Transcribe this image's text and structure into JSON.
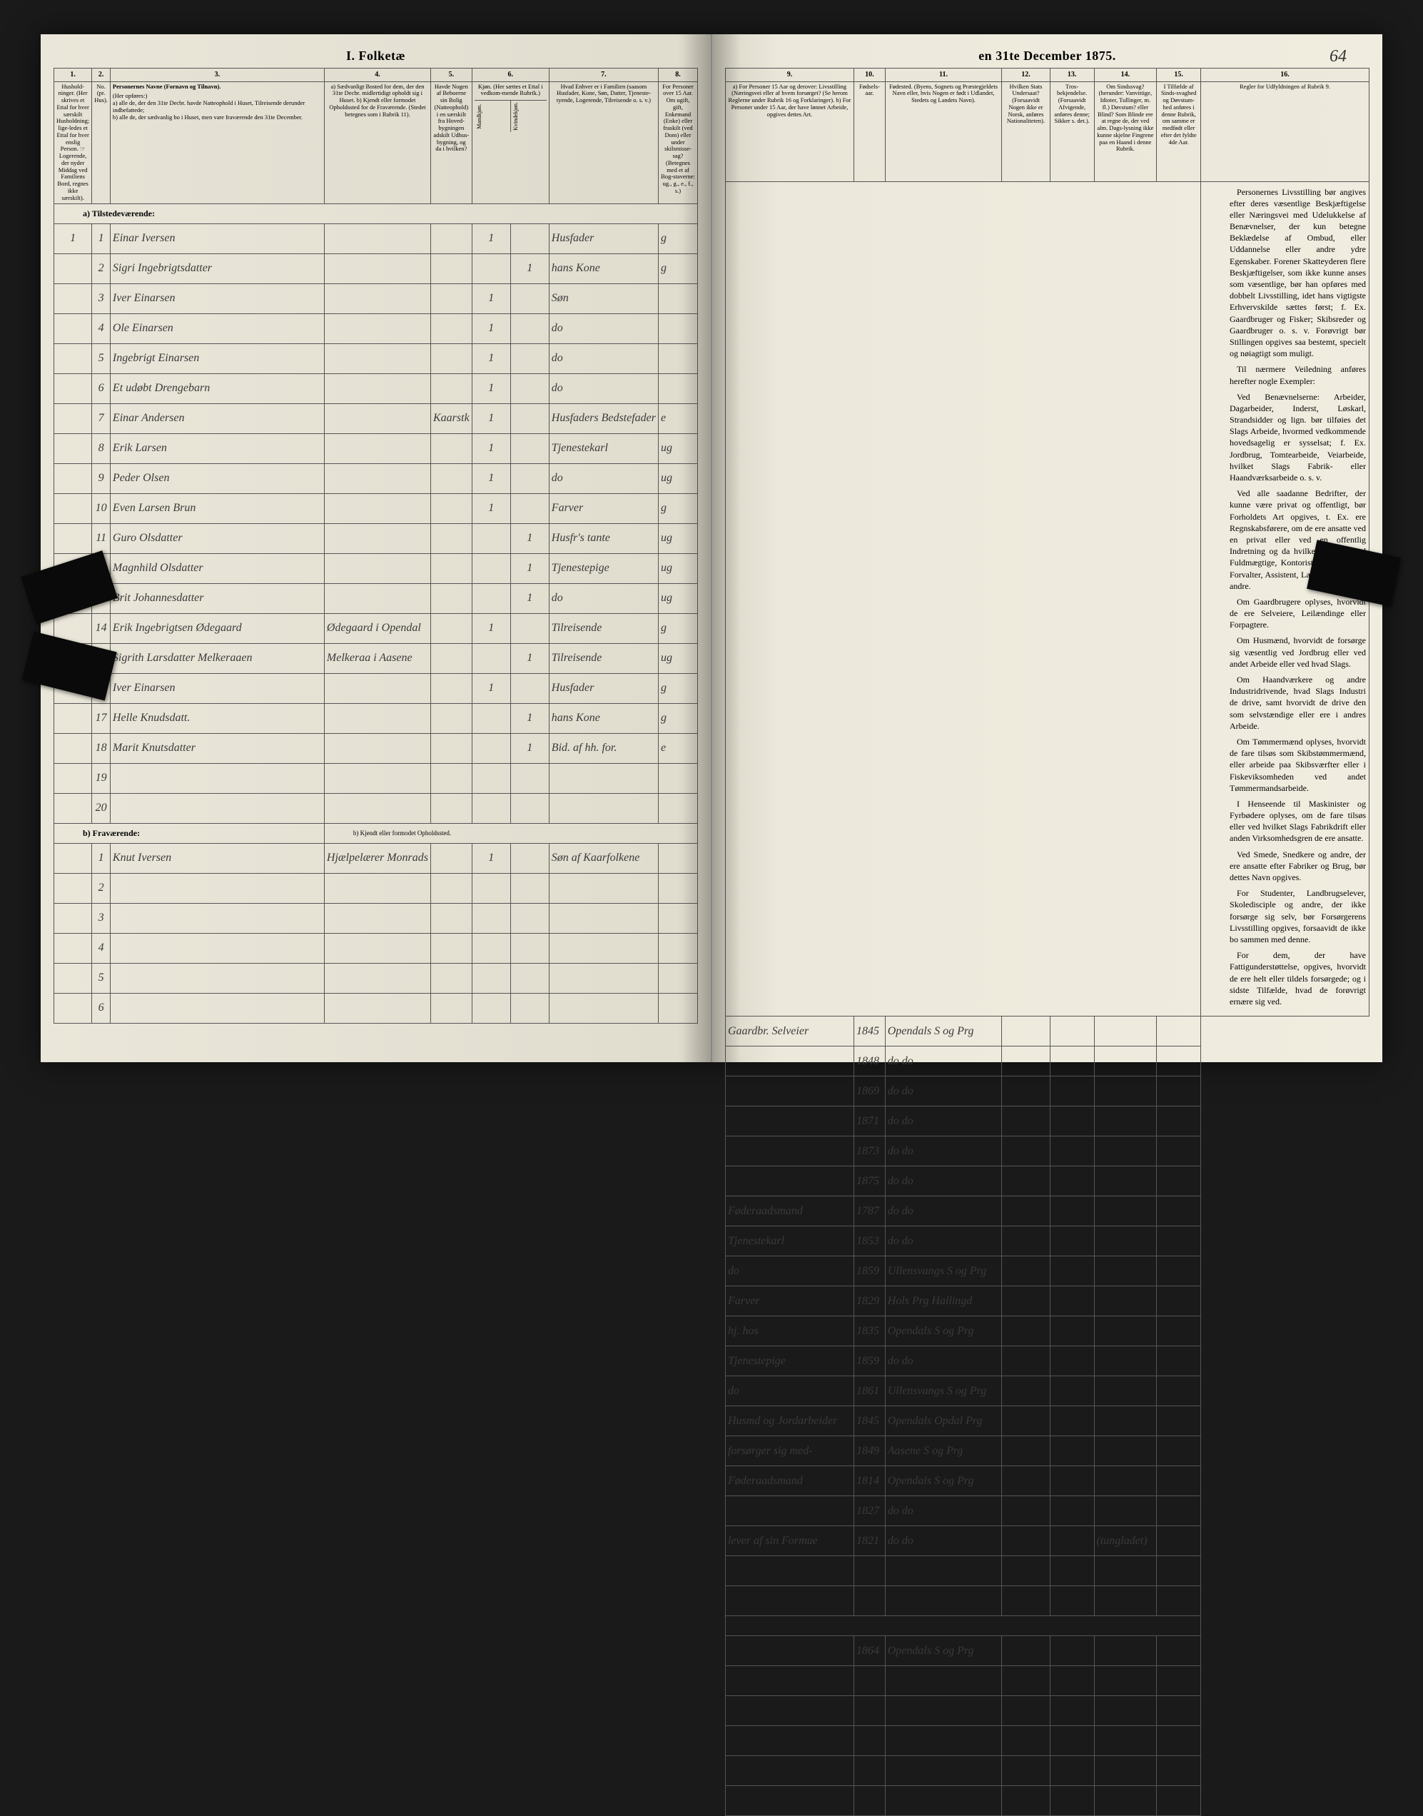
{
  "title_left": "I.  Folketæ",
  "title_right": "en 31te December 1875.",
  "page_number": "64",
  "columns_left": [
    "1.",
    "2.",
    "3.",
    "4.",
    "5.",
    "6.",
    "7.",
    "8."
  ],
  "columns_right": [
    "9.",
    "10.",
    "11.",
    "12.",
    "13.",
    "14.",
    "15.",
    "16."
  ],
  "header_left": {
    "c1": "Hushold-ninger. (Her skrives et Ettal for hver særskilt Husholdning; lige-ledes et Ettal for hver enslig Person. ☞ Logerende, der nyder Middag ved Familiens Bord, regnes ikke særskilt).",
    "c2": "No. (pr. Hus).",
    "c3_title": "Personernes Navne (Fornavn og Tilnavn).",
    "c3_sub": "(Her opføres:)\na) alle de, der den 31te Decbr. havde Natteophold i Huset, Tilreisende derunder indbefattede;\nb) alle de, der sædvanlig bo i Huset, men vare fraværende den 31te December.",
    "c4": "a) Sædvanligt Bosted for dem, der den 31te Decbr. midlertidigt opholdt sig i Huset.\nb) Kjendt eller formodet Opholdssted for de Fraværende. (Stedet betegnes som i Rubrik 11).",
    "c5": "Havde Nogen af Beboerne sin Bolig (Natteophold) i en særskilt fra Hoved-bygningen adskilt Udhus-bygning, og da i hvilken?",
    "c6": "Kjøn. (Her sættes et Ettal i vedkom-mende Rubrik.)",
    "c6a": "Mandkjøn.",
    "c6b": "Kvindekjøn.",
    "c7": "Hvad Enhver er i Familien (saasom Husfader, Kone, Søn, Datter, Tjeneste-tyende, Logerende, Tilreisende o. s. v.)",
    "c8": "For Personer over 15 Aar. Om ugift, gift, Enkemand (Enke) eller fraskilt (ved Dom) eller under skilsmisse-sag? (Betegnes med et af Bog-staverne: ug., g., e., f., s.)"
  },
  "header_right": {
    "c9": "a) For Personer 15 Aar og derover: Livsstilling (Næringsvei eller af hvem forsørget? (Se herom Reglerne under Rubrik 16 og Forklaringer).\nb) For Personer under 15 Aar, der have lønnet Arbeide, opgives dettes Art.",
    "c10": "Fødsels-aar.",
    "c11": "Fødested. (Byens, Sognets og Præstegjeldets Navn eller, hvis Nogen er født i Udlandet, Stedets og Landets Navn).",
    "c12": "Hvilken Stats Undersaat? (Forsaavidt Nogen ikke er Norsk, anføres Nationaliteten).",
    "c13": "Tros-bekjendelse. (Forsaavidt Afvigende, anføres denne; Sikker s. det.).",
    "c14": "Om Sindssvag? (herunder: Vanvittige, Idioter, Tullinger, m. fl.) Døvstum? eller Blind? Som Blinde ere at regne de, der ved alm. Dags-lysning ikke kunne skjelne Fingrene paa en Haand i denne Rubrik.",
    "c15": "I Tilfælde af Sinds-svaghed og Døvstum-hed anføres i denne Rubrik, om samme er medfødt eller efter det fyldte 4de Aar.",
    "c16": "Regler for Udfyldningen af Rubrik 9."
  },
  "section_a": "a) Tilstedeværende:",
  "section_b": "b) Fraværende:",
  "section_b_note": "b) Kjendt eller formodet Opholdssted.",
  "rows_a": [
    {
      "hh": "1",
      "n": "1",
      "name": "Einar Iversen",
      "c4": "",
      "c5": "",
      "m": "1",
      "k": "",
      "fam": "Husfader",
      "stat": "g",
      "occ": "Gaardbr. Selveier",
      "yr": "1845",
      "place": "Opendals S og Prg"
    },
    {
      "hh": "",
      "n": "2",
      "name": "Sigri Ingebrigtsdatter",
      "c4": "",
      "c5": "",
      "m": "",
      "k": "1",
      "fam": "hans Kone",
      "stat": "g",
      "occ": "",
      "yr": "1848",
      "place": "do  do"
    },
    {
      "hh": "",
      "n": "3",
      "name": "Iver Einarsen",
      "c4": "",
      "c5": "",
      "m": "1",
      "k": "",
      "fam": "Søn",
      "stat": "",
      "occ": "",
      "yr": "1869",
      "place": "do  do"
    },
    {
      "hh": "",
      "n": "4",
      "name": "Ole Einarsen",
      "c4": "",
      "c5": "",
      "m": "1",
      "k": "",
      "fam": "do",
      "stat": "",
      "occ": "",
      "yr": "1871",
      "place": "do  do"
    },
    {
      "hh": "",
      "n": "5",
      "name": "Ingebrigt Einarsen",
      "c4": "",
      "c5": "",
      "m": "1",
      "k": "",
      "fam": "do",
      "stat": "",
      "occ": "",
      "yr": "1873",
      "place": "do  do"
    },
    {
      "hh": "",
      "n": "6",
      "name": "Et udøbt Drengebarn",
      "c4": "",
      "c5": "",
      "m": "1",
      "k": "",
      "fam": "do",
      "stat": "",
      "occ": "",
      "yr": "1875",
      "place": "do  do"
    },
    {
      "hh": "",
      "n": "7",
      "name": "Einar Andersen",
      "c4": "",
      "c5": "Kaarstk",
      "m": "1",
      "k": "",
      "fam": "Husfaders Bedstefader",
      "stat": "e",
      "occ": "Føderaadsmand",
      "yr": "1787",
      "place": "do  do"
    },
    {
      "hh": "",
      "n": "8",
      "name": "Erik Larsen",
      "c4": "",
      "c5": "",
      "m": "1",
      "k": "",
      "fam": "Tjenestekarl",
      "stat": "ug",
      "occ": "Tjenestekarl",
      "yr": "1853",
      "place": "do  do"
    },
    {
      "hh": "",
      "n": "9",
      "name": "Peder Olsen",
      "c4": "",
      "c5": "",
      "m": "1",
      "k": "",
      "fam": "do",
      "stat": "ug",
      "occ": "do",
      "yr": "1859",
      "place": "Ullensvangs S og Prg"
    },
    {
      "hh": "",
      "n": "10",
      "name": "Even Larsen Brun",
      "c4": "",
      "c5": "",
      "m": "1",
      "k": "",
      "fam": "Farver",
      "stat": "g",
      "occ": "Farver",
      "yr": "1829",
      "place": "Hols Prg Hallingd"
    },
    {
      "hh": "",
      "n": "11",
      "name": "Guro Olsdatter",
      "c4": "",
      "c5": "",
      "m": "",
      "k": "1",
      "fam": "Husfr's tante",
      "stat": "ug",
      "occ": "hj. hos",
      "yr": "1835",
      "place": "Opendals S og Prg"
    },
    {
      "hh": "",
      "n": "12",
      "name": "Magnhild Olsdatter",
      "c4": "",
      "c5": "",
      "m": "",
      "k": "1",
      "fam": "Tjenestepige",
      "stat": "ug",
      "occ": "Tjenestepige",
      "yr": "1859",
      "place": "do  do"
    },
    {
      "hh": "",
      "n": "13",
      "name": "Brit Johannesdatter",
      "c4": "",
      "c5": "",
      "m": "",
      "k": "1",
      "fam": "do",
      "stat": "ug",
      "occ": "do",
      "yr": "1861",
      "place": "Ullensvangs S og Prg"
    },
    {
      "hh": "",
      "n": "14",
      "name": "Erik Ingebrigtsen Ødegaard",
      "c4": "Ødegaard i Opendal",
      "c5": "",
      "m": "1",
      "k": "",
      "fam": "Tilreisende",
      "stat": "g",
      "occ": "Husmd og Jordarbeider",
      "yr": "1845",
      "place": "Opendals Opdal Prg"
    },
    {
      "hh": "",
      "n": "15",
      "name": "Sigrith Larsdatter Melkeraaen",
      "c4": "Melkeraa i Aasene",
      "c5": "",
      "m": "",
      "k": "1",
      "fam": "Tilreisende",
      "stat": "ug",
      "occ": "forsørger sig med-",
      "yr": "1849",
      "place": "Aasene S og Prg"
    },
    {
      "hh": "1",
      "n": "16",
      "name": "Iver Einarsen",
      "c4": "",
      "c5": "",
      "m": "1",
      "k": "",
      "fam": "Husfader",
      "stat": "g",
      "occ": "Føderaadsmand",
      "yr": "1814",
      "place": "Opendals S og Prg"
    },
    {
      "hh": "",
      "n": "17",
      "name": "Helle Knudsdatt.",
      "c4": "",
      "c5": "",
      "m": "",
      "k": "1",
      "fam": "hans Kone",
      "stat": "g",
      "occ": "",
      "yr": "1827",
      "place": "do  do"
    },
    {
      "hh": "",
      "n": "18",
      "name": "Marit Knutsdatter",
      "c4": "",
      "c5": "",
      "m": "",
      "k": "1",
      "fam": "Bid. af hh. for.",
      "stat": "e",
      "occ": "lever af sin Formue",
      "yr": "1821",
      "place": "do  do"
    }
  ],
  "rows_a_empty": [
    19,
    20
  ],
  "rows_b": [
    {
      "hh": "",
      "n": "1",
      "name": "Knut Iversen",
      "c4": "Hjælpelærer Monrads",
      "c5": "",
      "m": "1",
      "k": "",
      "fam": "Søn af Kaarfolkene",
      "stat": "",
      "occ": "",
      "yr": "1864",
      "place": "Opendals S og Prg"
    }
  ],
  "rows_b_empty": [
    2,
    3,
    4,
    5,
    6
  ],
  "note_col14_row18": "(tungladet)",
  "instructions": [
    "Personernes Livsstilling bør angives efter deres væsentlige Beskjæftigelse eller Næringsvei med Udelukkelse af Benævnelser, der kun betegne Beklædelse af Ombud, eller Uddannelse eller andre ydre Egenskaber. Forener Skatteyderen flere Beskjæftigelser, som ikke kunne anses som væsentlige, bør han opføres med dobbelt Livsstilling, idet hans vigtigste Erhvervskilde sættes først; f. Ex. Gaardbruger og Fisker; Skibsreder og Gaardbruger o. s. v. Forøvrigt bør Stillingen opgives saa bestemt, specielt og nøiagtigt som muligt.",
    "Til nærmere Veiledning anføres herefter nogle Exempler:",
    "Ved Benævnelserne: Arbeider, Dagarbeider, Inderst, Løskarl, Strandsidder og lign. bør tilføies det Slags Arbeide, hvormed vedkommende hovedsagelig er sysselsat; f. Ex. Jordbrug, Tomtearbeide, Veiarbeide, hvilket Slags Fabrik- eller Haandværksarbeide o. s. v.",
    "Ved alle saadanne Bedrifter, der kunne være privat og offentligt, bør Forholdets Art opgives, t. Ex. ere Regnskabsførere, om de ere ansatte ved en privat eller ved en offentlig Indretning og da hvilken; ligesaa ved Fuldmægtige, Kontorist, Opsynsmand, Forvalter, Assistent, Lærer, Ingeniør og andre.",
    "Om Gaardbrugere oplyses, hvorvidt de ere Selveiere, Leilændinge eller Forpagtere.",
    "Om Husmænd, hvorvidt de forsørge sig væsentlig ved Jordbrug eller ved andet Arbeide eller ved hvad Slags.",
    "Om Haandværkere og andre Industridrivende, hvad Slags Industri de drive, samt hvorvidt de drive den som selvstændige eller ere i andres Arbeide.",
    "Om Tømmermænd oplyses, hvorvidt de fare tilsøs som Skibstømmermænd, eller arbeide paa Skibsværfter eller i Fiskeviksomheden ved andet Tømmermandsarbeide.",
    "I Henseende til Maskinister og Fyrbødere oplyses, om de fare tilsøs eller ved hvilket Slags Fabrikdrift eller anden Virksomhedsgren de ere ansatte.",
    "Ved Smede, Snedkere og andre, der ere ansatte efter Fabriker og Brug, bør dettes Navn opgives.",
    "For Studenter, Landbrugselever, Skoledisciple og andre, der ikke forsørge sig selv, bør Forsørgerens Livsstilling opgives, forsaavidt de ikke bo sammen med denne.",
    "For dem, der have Fattigunderstøttelse, opgives, hvorvidt de ere helt eller tildels forsørgede; og i sidste Tilfælde, hvad de forøvrigt ernære sig ved."
  ]
}
